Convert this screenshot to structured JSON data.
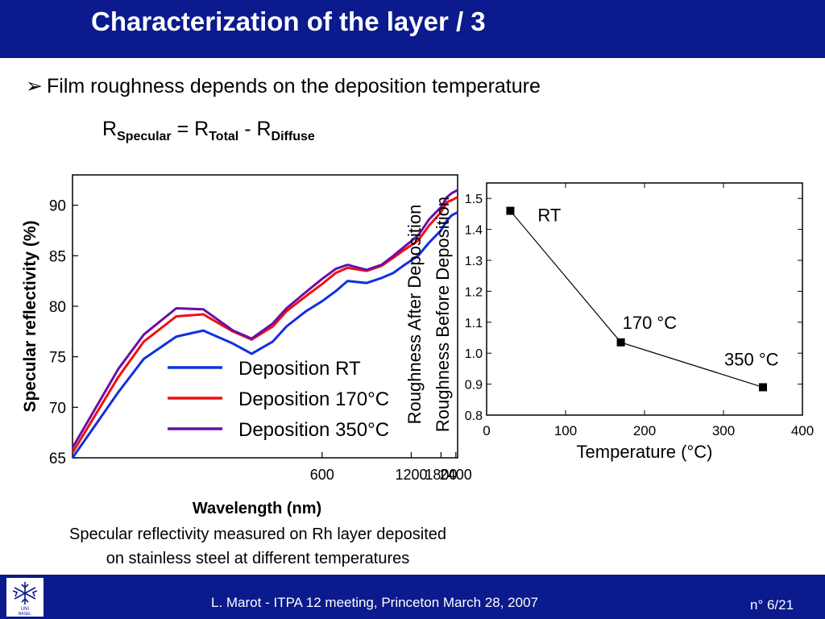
{
  "slide": {
    "title": "Characterization of the layer / 3",
    "bullet": "Film roughness depends on the deposition temperature",
    "formula": {
      "r1": "R",
      "s1": "Specular",
      "eq": " = ",
      "r2": "R",
      "s2": "Total",
      "minus": " - ",
      "r3": "R",
      "s3": "Diffuse"
    },
    "caption_line1": "Specular reflectivity measured on Rh layer deposited",
    "caption_line2": "on stainless steel at different temperatures",
    "footer_text": "L. Marot - ITPA 12 meeting, Princeton March 28, 2007",
    "page_number": "n° 6/21"
  },
  "chart_data": [
    {
      "type": "line",
      "title": "",
      "xlabel": "Wavelength (nm)",
      "ylabel": "Specular reflectivity (%)",
      "xscale": "reciprocal",
      "xlim": [
        250,
        2500
      ],
      "ylim": [
        65,
        93
      ],
      "xticks": [
        "600",
        "1200",
        "1800",
        "2400"
      ],
      "xtick_values": [
        600,
        1200,
        1800,
        2400
      ],
      "yticks": [
        "65",
        "70",
        "75",
        "80",
        "85",
        "90"
      ],
      "legend_position": "center-right",
      "series": [
        {
          "name": "Deposition RT",
          "color": "#1030e0",
          "x": [
            250,
            280,
            300,
            330,
            360,
            400,
            430,
            470,
            500,
            550,
            600,
            650,
            700,
            800,
            900,
            1000,
            1100,
            1300,
            1500,
            1800,
            2000,
            2200,
            2500
          ],
          "y": [
            65.0,
            71.5,
            74.8,
            77.0,
            77.6,
            76.3,
            75.3,
            76.5,
            78.0,
            79.5,
            80.5,
            81.5,
            82.5,
            82.3,
            82.8,
            83.3,
            84.0,
            85.0,
            86.3,
            87.5,
            88.5,
            89.0,
            89.3
          ]
        },
        {
          "name": "Deposition 170°C",
          "color": "#ee1111",
          "x": [
            250,
            280,
            300,
            330,
            360,
            400,
            430,
            470,
            500,
            550,
            600,
            650,
            700,
            800,
            900,
            1000,
            1100,
            1300,
            1500,
            1800,
            2000,
            2200,
            2500
          ],
          "y": [
            65.5,
            73.0,
            76.5,
            79.0,
            79.2,
            77.5,
            76.7,
            78.0,
            79.5,
            81.0,
            82.2,
            83.3,
            83.8,
            83.5,
            84.0,
            84.8,
            85.5,
            86.5,
            88.0,
            89.3,
            90.3,
            90.5,
            90.8
          ]
        },
        {
          "name": "Deposition 350°C",
          "color": "#6a0fa6",
          "x": [
            250,
            280,
            300,
            330,
            360,
            400,
            430,
            470,
            500,
            550,
            600,
            650,
            700,
            800,
            900,
            1000,
            1100,
            1300,
            1500,
            1800,
            2000,
            2200,
            2500
          ],
          "y": [
            66.0,
            73.8,
            77.2,
            79.8,
            79.7,
            77.6,
            76.8,
            78.3,
            79.8,
            81.4,
            82.7,
            83.7,
            84.1,
            83.6,
            84.1,
            85.0,
            85.8,
            87.0,
            88.6,
            89.8,
            90.8,
            91.2,
            91.5
          ]
        }
      ],
      "right_axis_labels": [
        "Roughness After Deposition",
        "Roughness Before Deposition"
      ]
    },
    {
      "type": "scatter",
      "title": "",
      "xlabel": "Temperature (°C)",
      "ylabel": "",
      "xlim": [
        0,
        400
      ],
      "ylim": [
        0.8,
        1.55
      ],
      "xticks": [
        "0",
        "100",
        "200",
        "300",
        "400"
      ],
      "yticks": [
        "0.8",
        "0.9",
        "1.0",
        "1.1",
        "1.2",
        "1.3",
        "1.4",
        "1.5"
      ],
      "grid": false,
      "points": [
        {
          "x": 30,
          "y": 1.46,
          "label": "RT"
        },
        {
          "x": 170,
          "y": 1.035,
          "label": "170 °C"
        },
        {
          "x": 350,
          "y": 0.89,
          "label": "350 °C"
        }
      ],
      "marker": "square",
      "line": true
    }
  ]
}
